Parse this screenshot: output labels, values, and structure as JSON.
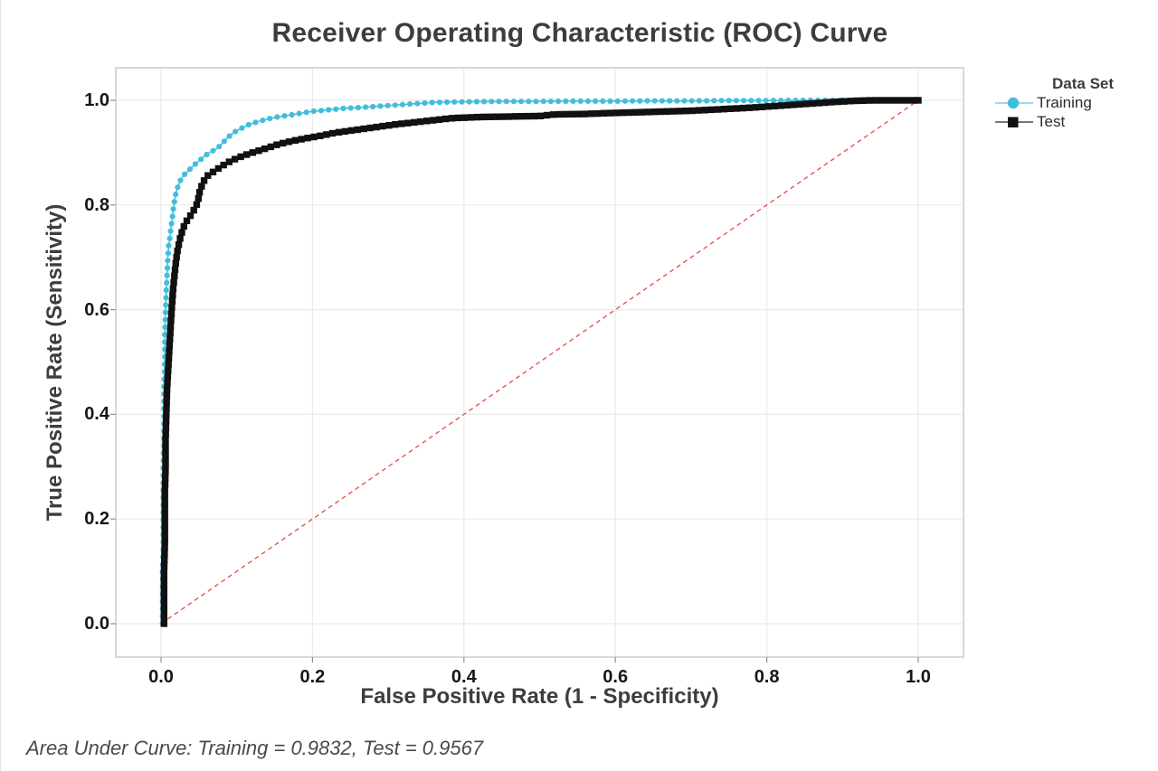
{
  "chart_data": {
    "type": "line",
    "title": "Receiver Operating Characteristic (ROC) Curve",
    "xlabel": "False Positive Rate (1 - Specificity)",
    "ylabel": "True Positive Rate (Sensitivity)",
    "xlim": [
      0,
      1
    ],
    "ylim": [
      0,
      1
    ],
    "grid": true,
    "x_ticks": {
      "values": [
        0,
        0.2,
        0.4,
        0.6,
        0.8,
        1.0
      ],
      "labels": [
        "0.0",
        "0.2",
        "0.4",
        "0.6",
        "0.8",
        "1.0"
      ]
    },
    "y_ticks": {
      "values": [
        0,
        0.2,
        0.4,
        0.6,
        0.8,
        1.0
      ],
      "labels": [
        "0.0",
        "0.2",
        "0.4",
        "0.6",
        "0.8",
        "1.0"
      ]
    },
    "legend": {
      "title": "Data Set",
      "position": "right"
    },
    "reference_line": {
      "name": "chance-diagonal",
      "from": [
        0,
        0
      ],
      "to": [
        1,
        1
      ],
      "style": "dashed",
      "color": "#e4574f"
    },
    "annotation": "Area Under Curve: Training = 0.9832, Test = 0.9567",
    "auc": {
      "Training": 0.9832,
      "Test": 0.9567
    },
    "series": [
      {
        "name": "Training",
        "marker": "circle",
        "color": "#41bedb",
        "legend_line_color": "#9ed8e8",
        "points": [
          [
            0.002,
            0.0
          ],
          [
            0.002,
            0.05
          ],
          [
            0.002,
            0.1
          ],
          [
            0.003,
            0.15
          ],
          [
            0.003,
            0.2
          ],
          [
            0.003,
            0.25
          ],
          [
            0.003,
            0.3
          ],
          [
            0.004,
            0.35
          ],
          [
            0.004,
            0.4
          ],
          [
            0.004,
            0.45
          ],
          [
            0.005,
            0.5
          ],
          [
            0.005,
            0.55
          ],
          [
            0.006,
            0.6
          ],
          [
            0.007,
            0.64
          ],
          [
            0.008,
            0.67
          ],
          [
            0.009,
            0.7
          ],
          [
            0.01,
            0.72
          ],
          [
            0.012,
            0.74
          ],
          [
            0.013,
            0.755
          ],
          [
            0.015,
            0.775
          ],
          [
            0.016,
            0.79
          ],
          [
            0.018,
            0.81
          ],
          [
            0.02,
            0.825
          ],
          [
            0.023,
            0.838
          ],
          [
            0.026,
            0.848
          ],
          [
            0.03,
            0.857
          ],
          [
            0.035,
            0.864
          ],
          [
            0.04,
            0.871
          ],
          [
            0.045,
            0.878
          ],
          [
            0.051,
            0.885
          ],
          [
            0.057,
            0.893
          ],
          [
            0.065,
            0.901
          ],
          [
            0.072,
            0.906
          ],
          [
            0.078,
            0.913
          ],
          [
            0.083,
            0.921
          ],
          [
            0.088,
            0.929
          ],
          [
            0.094,
            0.936
          ],
          [
            0.1,
            0.942
          ],
          [
            0.107,
            0.947
          ],
          [
            0.115,
            0.953
          ],
          [
            0.127,
            0.959
          ],
          [
            0.14,
            0.964
          ],
          [
            0.152,
            0.968
          ],
          [
            0.167,
            0.971
          ],
          [
            0.183,
            0.975
          ],
          [
            0.2,
            0.979
          ],
          [
            0.215,
            0.981
          ],
          [
            0.23,
            0.983
          ],
          [
            0.245,
            0.985
          ],
          [
            0.26,
            0.986
          ],
          [
            0.28,
            0.988
          ],
          [
            0.3,
            0.99
          ],
          [
            0.32,
            0.992
          ],
          [
            0.34,
            0.994
          ],
          [
            0.36,
            0.996
          ],
          [
            0.39,
            0.997
          ],
          [
            0.42,
            0.9975
          ],
          [
            0.45,
            0.998
          ],
          [
            0.5,
            0.998
          ],
          [
            0.55,
            0.9985
          ],
          [
            0.6,
            0.9985
          ],
          [
            0.65,
            0.999
          ],
          [
            0.7,
            0.999
          ],
          [
            0.75,
            0.9995
          ],
          [
            0.8,
            0.9995
          ],
          [
            0.85,
            1.0
          ],
          [
            0.9,
            1.0
          ]
        ]
      },
      {
        "name": "Test",
        "marker": "square",
        "color": "#111111",
        "legend_line_color": "#4a4a4a",
        "points": [
          [
            0.004,
            0.0
          ],
          [
            0.004,
            0.05
          ],
          [
            0.004,
            0.1
          ],
          [
            0.005,
            0.15
          ],
          [
            0.005,
            0.2
          ],
          [
            0.005,
            0.25
          ],
          [
            0.006,
            0.3
          ],
          [
            0.006,
            0.35
          ],
          [
            0.007,
            0.4
          ],
          [
            0.008,
            0.45
          ],
          [
            0.01,
            0.5
          ],
          [
            0.012,
            0.55
          ],
          [
            0.014,
            0.6
          ],
          [
            0.016,
            0.64
          ],
          [
            0.018,
            0.67
          ],
          [
            0.02,
            0.695
          ],
          [
            0.022,
            0.715
          ],
          [
            0.025,
            0.735
          ],
          [
            0.028,
            0.75
          ],
          [
            0.031,
            0.762
          ],
          [
            0.035,
            0.772
          ],
          [
            0.04,
            0.782
          ],
          [
            0.044,
            0.792
          ],
          [
            0.047,
            0.8
          ],
          [
            0.049,
            0.81
          ],
          [
            0.051,
            0.825
          ],
          [
            0.054,
            0.838
          ],
          [
            0.058,
            0.85
          ],
          [
            0.063,
            0.858
          ],
          [
            0.072,
            0.866
          ],
          [
            0.08,
            0.874
          ],
          [
            0.088,
            0.881
          ],
          [
            0.098,
            0.888
          ],
          [
            0.11,
            0.895
          ],
          [
            0.123,
            0.901
          ],
          [
            0.138,
            0.908
          ],
          [
            0.155,
            0.916
          ],
          [
            0.172,
            0.922
          ],
          [
            0.19,
            0.927
          ],
          [
            0.21,
            0.932
          ],
          [
            0.23,
            0.938
          ],
          [
            0.25,
            0.942
          ],
          [
            0.27,
            0.946
          ],
          [
            0.29,
            0.95
          ],
          [
            0.31,
            0.954
          ],
          [
            0.335,
            0.958
          ],
          [
            0.36,
            0.962
          ],
          [
            0.385,
            0.966
          ],
          [
            0.42,
            0.968
          ],
          [
            0.46,
            0.969
          ],
          [
            0.5,
            0.97
          ],
          [
            0.52,
            0.973
          ],
          [
            0.56,
            0.974
          ],
          [
            0.6,
            0.976
          ],
          [
            0.65,
            0.978
          ],
          [
            0.7,
            0.98
          ],
          [
            0.74,
            0.983
          ],
          [
            0.78,
            0.986
          ],
          [
            0.82,
            0.99
          ],
          [
            0.86,
            0.994
          ],
          [
            0.89,
            0.997
          ],
          [
            0.915,
            0.999
          ],
          [
            0.94,
            1.0
          ],
          [
            1.0,
            1.0
          ]
        ]
      }
    ]
  },
  "colors": {
    "grid": "#eaeaea",
    "frame": "#c4c4c4",
    "tick_mark": "#8f8f8f",
    "title_text": "#3d3d3d",
    "axis_text": "#3d3d3d",
    "tick_text": "#161616",
    "footer_text": "#4a4a4a"
  }
}
